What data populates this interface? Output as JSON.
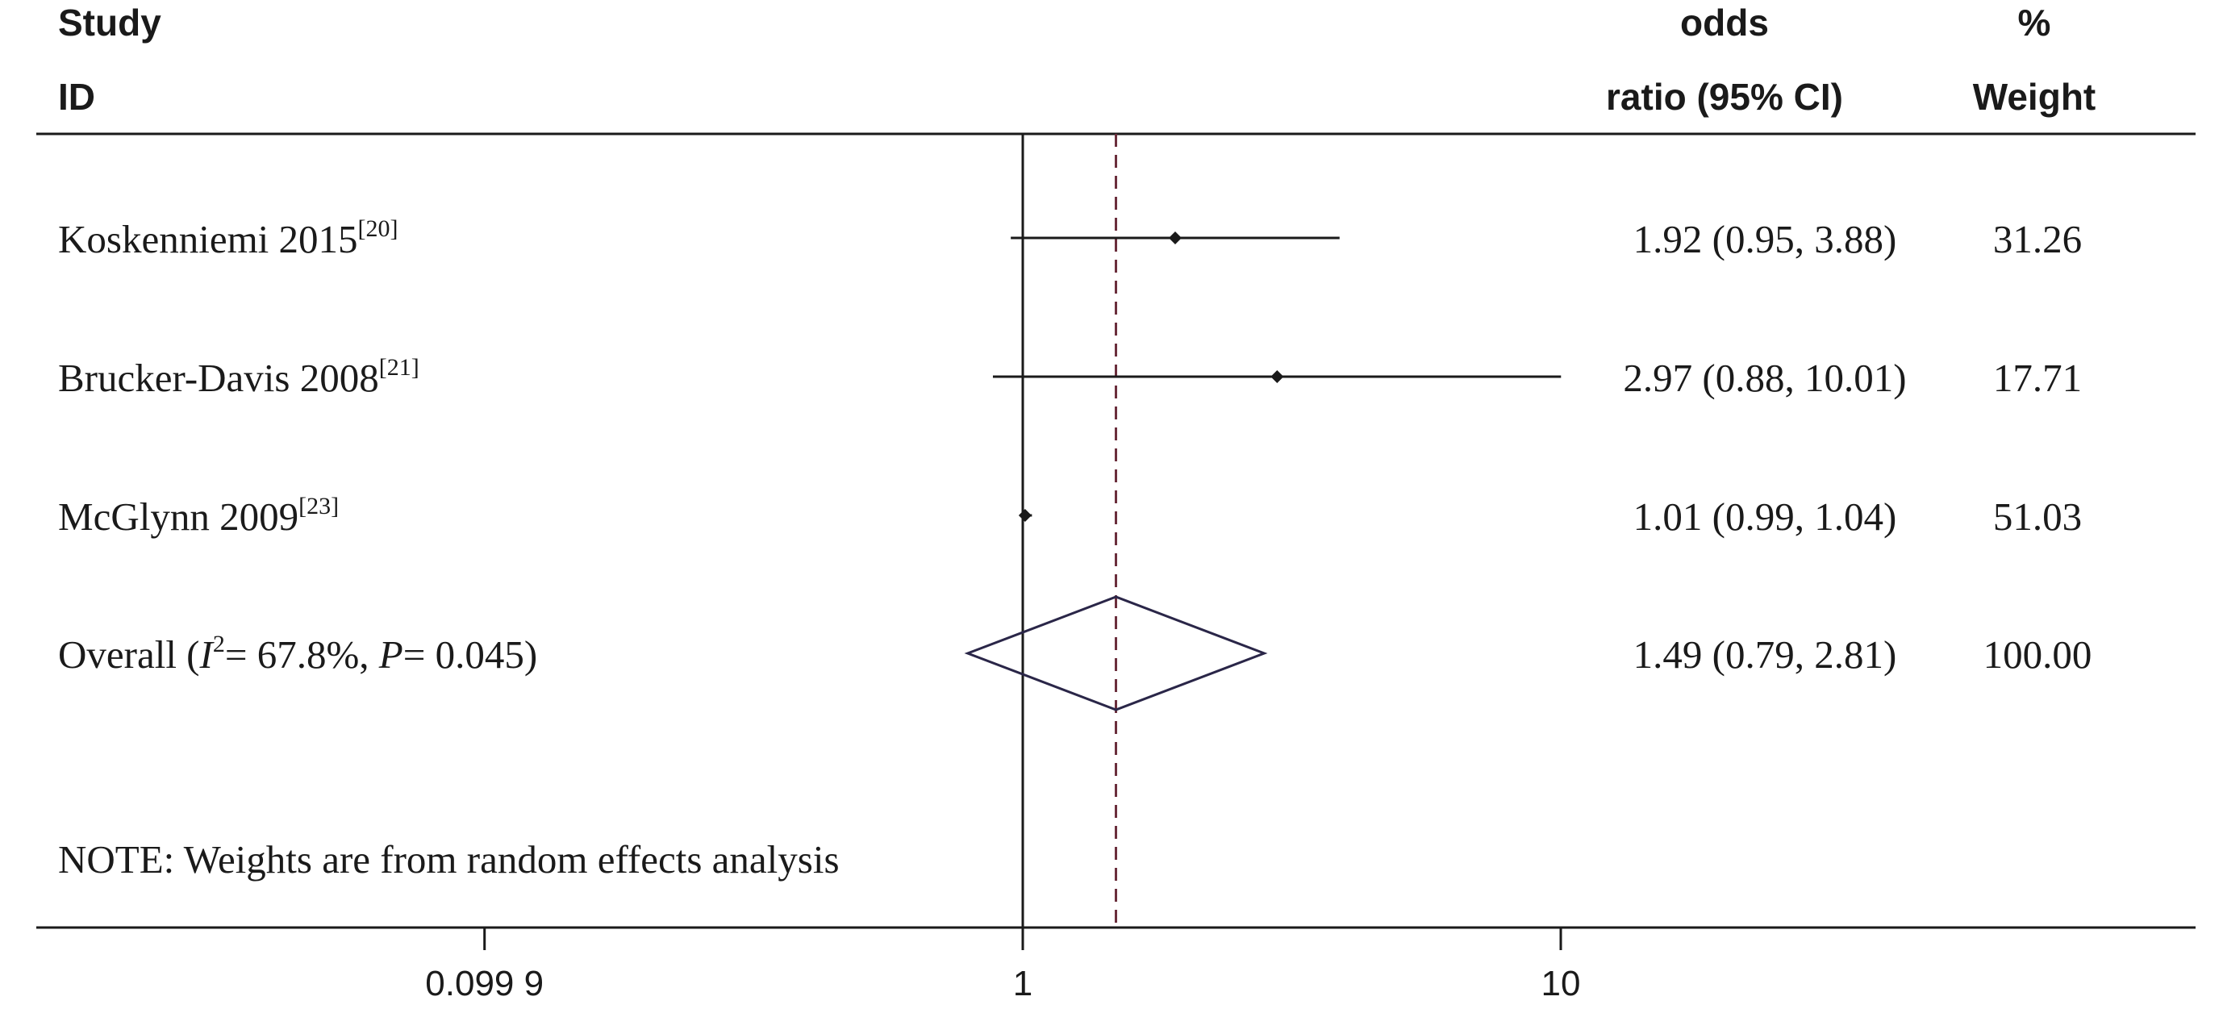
{
  "header": {
    "study_line1": "Study",
    "study_line2": "ID",
    "or_line1": "odds",
    "or_line2": "ratio (95% CI)",
    "weight_line1": "%",
    "weight_line2": "Weight"
  },
  "chart_data": {
    "type": "forest",
    "x_scale": "log",
    "xlim": [
      0.0999,
      10.01
    ],
    "x_ticks": [
      0.0999,
      1,
      10
    ],
    "x_tick_labels": [
      "0.099 9",
      "1",
      "10"
    ],
    "null_line": 1,
    "overall_line": 1.49,
    "studies": [
      {
        "name": "Koskenniemi 2015",
        "ref": "[20]",
        "or": 1.92,
        "lo": 0.95,
        "hi": 3.88,
        "label": "1.92 (0.95, 3.88)",
        "weight": "31.26"
      },
      {
        "name": "Brucker-Davis 2008",
        "ref": "[21]",
        "or": 2.97,
        "lo": 0.88,
        "hi": 10.01,
        "label": "2.97 (0.88, 10.01)",
        "weight": "17.71"
      },
      {
        "name": "McGlynn 2009",
        "ref": "[23]",
        "or": 1.01,
        "lo": 0.99,
        "hi": 1.04,
        "label": "1.01 (0.99, 1.04)",
        "weight": "51.03"
      }
    ],
    "overall": {
      "prefix": "Overall  (",
      "i_symbol": "I",
      "i_sup": "2",
      "i_value": "= 67.8%, ",
      "p_symbol": "P",
      "p_value": "= 0.045)",
      "or": 1.49,
      "lo": 0.79,
      "hi": 2.81,
      "label": "1.49 (0.79, 2.81)",
      "weight": "100.00"
    },
    "note": "NOTE: Weights are from random effects analysis",
    "colors": {
      "text": "#1a1a1a",
      "overall_line": "#6b2e3c",
      "diamond": "#2a2648"
    }
  }
}
